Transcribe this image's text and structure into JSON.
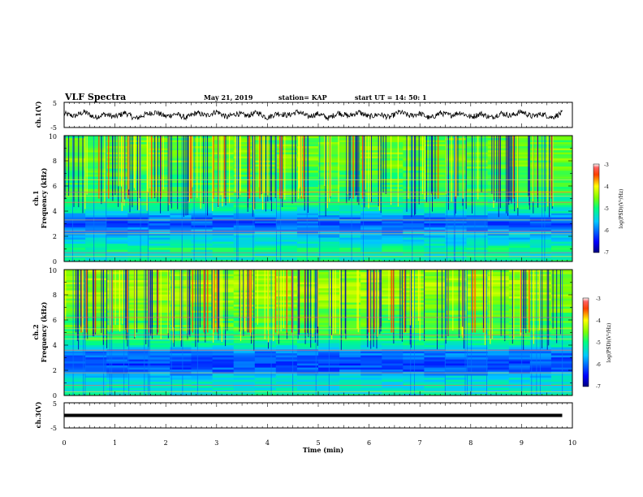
{
  "header": {
    "title": "VLF Spectra",
    "date": "May 21, 2019",
    "station": "station= KAP",
    "start": "start  UT =   14: 50: 1"
  },
  "chart_data": [
    {
      "type": "line",
      "panel": "ch1-waveform",
      "ylabel": "ch.1(V)",
      "ylim": [
        -5,
        5
      ],
      "yticks": [
        "5",
        "-5"
      ],
      "xlim": [
        0,
        10
      ],
      "line_color": "#000000",
      "x": [
        0,
        0.2,
        0.4,
        0.6,
        0.8,
        1.0,
        1.2,
        1.4,
        1.6,
        1.8,
        2.0,
        2.2,
        2.4,
        2.6,
        2.8,
        3.0,
        3.2,
        3.4,
        3.6,
        3.8,
        4.0,
        4.2,
        4.4,
        4.6,
        4.8,
        5.0,
        5.2,
        5.4,
        5.6,
        5.8,
        6.0,
        6.2,
        6.4,
        6.6,
        6.8,
        7.0,
        7.2,
        7.4,
        7.6,
        7.8,
        8.0,
        8.2,
        8.4,
        8.6,
        8.8,
        9.0,
        9.2,
        9.4,
        9.6,
        9.8
      ],
      "y": [
        0.5,
        -0.5,
        1.2,
        -1.0,
        0.3,
        -0.8,
        0.9,
        -1.5,
        0.2,
        1.1,
        -0.6,
        0.4,
        -1.2,
        0.8,
        -0.3,
        1.4,
        -0.9,
        0.6,
        -0.4,
        1.0,
        -1.1,
        0.7,
        -0.2,
        1.3,
        -0.7,
        0.5,
        -1.3,
        0.9,
        -0.5,
        1.1,
        -0.8,
        0.3,
        -1.0,
        1.2,
        -0.4,
        0.6,
        -1.4,
        0.8,
        -0.2,
        1.0,
        -0.9,
        0.5,
        -1.1,
        0.7,
        -0.3,
        1.3,
        -0.6,
        0.4,
        -1.0,
        0.8
      ]
    },
    {
      "type": "heatmap",
      "panel": "ch1-spectrogram",
      "ylabel": "ch.1",
      "ylabel2": "Frequency (kHz)",
      "ylim": [
        0,
        10
      ],
      "yticks": [
        "0",
        "2",
        "4",
        "6",
        "8",
        "10"
      ],
      "xlim": [
        0,
        10
      ],
      "colorbar": {
        "label": "log(PSD)(V²/Hz)",
        "min": -7,
        "max": -3,
        "ticks": [
          "-3",
          "-4",
          "-5",
          "-6",
          "-7"
        ]
      },
      "band_profile": [
        {
          "f": 0.0,
          "v": -5.0
        },
        {
          "f": 0.5,
          "v": -5.4
        },
        {
          "f": 1.0,
          "v": -5.0
        },
        {
          "f": 1.5,
          "v": -5.4
        },
        {
          "f": 2.0,
          "v": -5.6
        },
        {
          "f": 2.5,
          "v": -5.8
        },
        {
          "f": 3.0,
          "v": -6.2
        },
        {
          "f": 3.5,
          "v": -6.0
        },
        {
          "f": 4.0,
          "v": -5.3
        },
        {
          "f": 4.5,
          "v": -5.0
        },
        {
          "f": 5.0,
          "v": -5.1
        },
        {
          "f": 5.5,
          "v": -4.7
        },
        {
          "f": 6.0,
          "v": -4.9
        },
        {
          "f": 7.0,
          "v": -4.8
        },
        {
          "f": 8.0,
          "v": -4.6
        },
        {
          "f": 9.0,
          "v": -4.6
        },
        {
          "f": 10.0,
          "v": -4.7
        }
      ],
      "horizontal_lines_khz": [
        0.4,
        0.7,
        2.2,
        2.4,
        3.3,
        4.7,
        5.2,
        5.5,
        6.5
      ]
    },
    {
      "type": "heatmap",
      "panel": "ch2-spectrogram",
      "ylabel": "ch.2",
      "ylabel2": "Frequency (kHz)",
      "ylim": [
        0,
        10
      ],
      "yticks": [
        "0",
        "2",
        "4",
        "6",
        "8",
        "10"
      ],
      "xlim": [
        0,
        10
      ],
      "colorbar": {
        "label": "log(PSD)(V²/Hz)",
        "min": -7,
        "max": -3,
        "ticks": [
          "-3",
          "-4",
          "-5",
          "-6",
          "-7"
        ]
      },
      "band_profile": [
        {
          "f": 0.0,
          "v": -5.2
        },
        {
          "f": 0.5,
          "v": -5.4
        },
        {
          "f": 1.0,
          "v": -5.3
        },
        {
          "f": 1.5,
          "v": -5.5
        },
        {
          "f": 2.0,
          "v": -6.1
        },
        {
          "f": 2.5,
          "v": -6.2
        },
        {
          "f": 3.0,
          "v": -6.1
        },
        {
          "f": 3.5,
          "v": -5.9
        },
        {
          "f": 4.0,
          "v": -5.2
        },
        {
          "f": 4.5,
          "v": -5.0
        },
        {
          "f": 5.0,
          "v": -4.9
        },
        {
          "f": 5.5,
          "v": -4.7
        },
        {
          "f": 6.0,
          "v": -4.8
        },
        {
          "f": 7.0,
          "v": -4.6
        },
        {
          "f": 8.0,
          "v": -4.4
        },
        {
          "f": 9.0,
          "v": -4.4
        },
        {
          "f": 10.0,
          "v": -4.5
        }
      ],
      "horizontal_lines_khz": [
        0.3,
        0.8,
        1.8,
        3.6,
        4.5,
        4.8,
        5.3,
        6.2
      ]
    },
    {
      "type": "line",
      "panel": "ch3-waveform",
      "ylabel": "ch.3(V)",
      "ylim": [
        -5,
        5
      ],
      "yticks": [
        "5",
        "-5"
      ],
      "xlim": [
        0,
        10
      ],
      "xlabel": "Time (min)",
      "xticks": [
        "0",
        "1",
        "2",
        "3",
        "4",
        "5",
        "6",
        "7",
        "8",
        "9",
        "10"
      ],
      "constant_value": 0,
      "data_end": 9.8
    }
  ]
}
